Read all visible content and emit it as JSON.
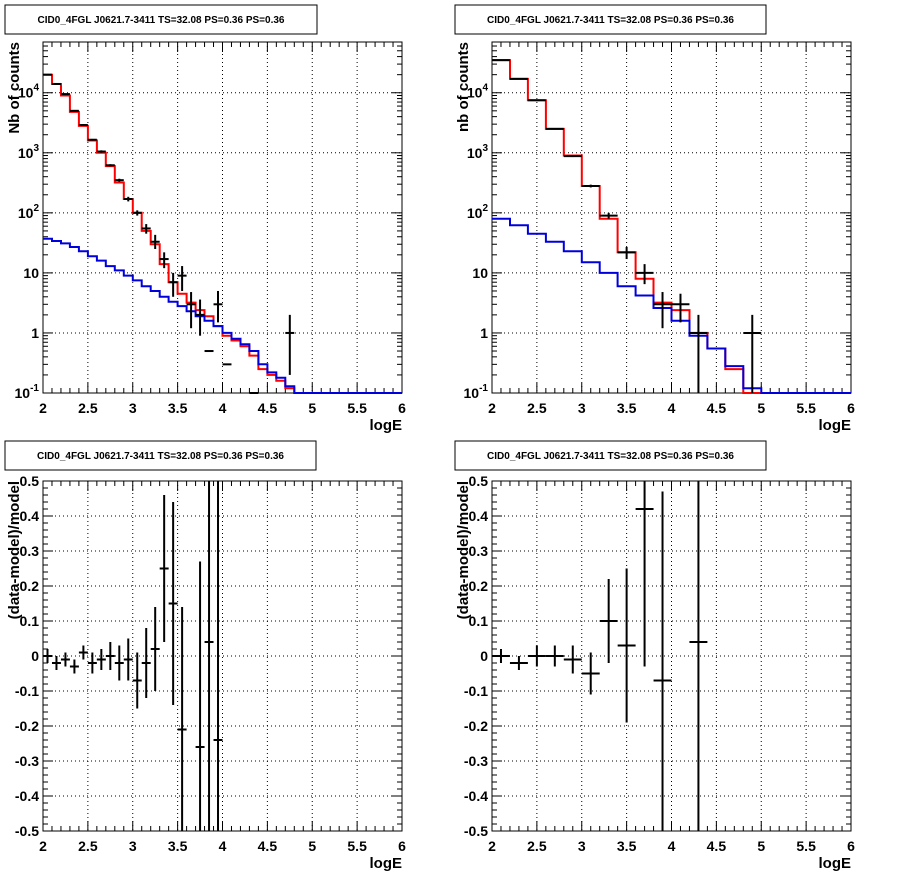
{
  "chart_data": [
    {
      "type": "line",
      "title": "CID0_4FGL J0621.7-3411 TS=32.08 PS=0.36 PS=0.36",
      "xlabel": "logE",
      "ylabel": "Nb of counts",
      "xscale": "linear",
      "yscale": "log",
      "xlim": [
        2,
        6
      ],
      "ylim": [
        0.1,
        70000
      ],
      "grid": true,
      "x_ticks": [
        "2",
        "2.5",
        "3",
        "3.5",
        "4",
        "4.5",
        "5",
        "5.5",
        "6"
      ],
      "y_ticks": [
        "10^-1",
        "1",
        "10",
        "10^2",
        "10^3",
        "10^4"
      ],
      "series": [
        {
          "color": "#ff0000",
          "style": "step",
          "bin_edges": [
            2.0,
            2.1,
            2.2,
            2.3,
            2.4,
            2.5,
            2.6,
            2.7,
            2.8,
            2.9,
            3.0,
            3.1,
            3.2,
            3.3,
            3.4,
            3.5,
            3.6,
            3.7,
            3.8,
            3.9,
            4.0,
            4.1,
            4.2,
            4.3,
            4.4,
            4.5,
            4.6,
            4.7,
            4.8,
            4.9,
            5.0,
            5.1,
            5.2,
            5.3,
            5.4,
            5.5,
            5.6,
            5.7,
            5.8,
            5.9,
            6.0
          ],
          "values": [
            20000,
            14000,
            9000,
            4800,
            2800,
            1600,
            1000,
            600,
            320,
            170,
            100,
            50,
            30,
            14,
            7,
            4.5,
            3.2,
            2.4,
            1.9,
            1.3,
            0.9,
            0.75,
            0.6,
            0.42,
            0.25,
            0.2,
            0.16,
            0.12,
            0.1,
            0.1,
            0.1,
            0.1,
            0.1,
            0.1,
            0.1,
            0.1,
            0.1,
            0.1,
            0.1,
            0.1
          ]
        },
        {
          "color": "#0000dd",
          "style": "step",
          "bin_edges": [
            2.0,
            2.1,
            2.2,
            2.3,
            2.4,
            2.5,
            2.6,
            2.7,
            2.8,
            2.9,
            3.0,
            3.1,
            3.2,
            3.3,
            3.4,
            3.5,
            3.6,
            3.7,
            3.8,
            3.9,
            4.0,
            4.1,
            4.2,
            4.3,
            4.4,
            4.5,
            4.6,
            4.7,
            4.8,
            4.9,
            5.0,
            5.1,
            5.2,
            5.3,
            5.4,
            5.5,
            5.6,
            5.7,
            5.8,
            5.9,
            6.0
          ],
          "values": [
            37,
            34,
            31,
            27,
            23,
            19,
            16,
            13,
            11,
            9,
            7.5,
            6,
            5,
            4,
            3.3,
            2.8,
            2.3,
            1.9,
            1.6,
            1.3,
            1.0,
            0.8,
            0.65,
            0.5,
            0.3,
            0.22,
            0.18,
            0.13,
            0.1,
            0.1,
            0.1,
            0.1,
            0.1,
            0.1,
            0.1,
            0.1,
            0.1,
            0.1,
            0.1,
            0.1
          ]
        }
      ],
      "data_points": {
        "color": "#000000",
        "x": [
          2.05,
          2.15,
          2.25,
          2.35,
          2.45,
          2.55,
          2.65,
          2.75,
          2.85,
          2.95,
          3.05,
          3.15,
          3.25,
          3.35,
          3.45,
          3.55,
          3.65,
          3.75,
          3.85,
          3.95,
          4.05,
          4.15,
          4.25,
          4.35,
          4.45,
          4.55,
          4.65,
          4.75,
          4.85
        ],
        "y": [
          20000,
          14000,
          9500,
          5000,
          2900,
          1650,
          1050,
          620,
          350,
          170,
          100,
          55,
          33,
          17,
          7,
          9,
          3,
          2,
          0.5,
          3,
          0.3,
          0.5,
          1,
          0.1,
          0.1,
          0.1,
          0.1,
          1,
          0.1
        ],
        "y_low": [
          19500,
          13700,
          9300,
          4850,
          2800,
          1600,
          1000,
          595,
          330,
          155,
          90,
          45,
          25,
          12,
          4,
          5,
          1.2,
          0.9,
          0.1,
          1.5,
          0.1,
          0.1,
          0.2,
          0.1,
          0.1,
          0.1,
          0.1,
          0.2,
          0.1
        ],
        "y_high": [
          20500,
          14300,
          9700,
          5150,
          3000,
          1700,
          1100,
          645,
          370,
          185,
          110,
          65,
          43,
          22,
          10,
          13,
          4.8,
          3.6,
          0.1,
          5,
          0.1,
          0.1,
          2,
          0.1,
          0.1,
          0.1,
          0.1,
          2,
          0.1
        ],
        "visible": [
          true,
          true,
          true,
          true,
          true,
          true,
          true,
          true,
          true,
          true,
          true,
          true,
          true,
          true,
          true,
          true,
          true,
          true,
          true,
          true,
          true,
          false,
          false,
          true,
          false,
          false,
          false,
          true,
          false
        ]
      }
    },
    {
      "type": "line",
      "title": "CID0_4FGL J0621.7-3411 TS=32.08 PS=0.36 PS=0.36",
      "xlabel": "logE",
      "ylabel": "nb of counts",
      "xscale": "linear",
      "yscale": "log",
      "xlim": [
        2,
        6
      ],
      "ylim": [
        0.1,
        70000
      ],
      "grid": true,
      "x_ticks": [
        "2",
        "2.5",
        "3",
        "3.5",
        "4",
        "4.5",
        "5",
        "5.5",
        "6"
      ],
      "y_ticks": [
        "10^-1",
        "1",
        "10",
        "10^2",
        "10^3",
        "10^4"
      ],
      "series": [
        {
          "color": "#ff0000",
          "style": "step",
          "bin_edges": [
            2.0,
            2.2,
            2.4,
            2.6,
            2.8,
            3.0,
            3.2,
            3.4,
            3.6,
            3.8,
            4.0,
            4.2,
            4.4,
            4.6,
            4.8,
            5.0,
            5.2,
            5.4,
            5.6,
            5.8,
            6.0
          ],
          "values": [
            35000,
            17000,
            7500,
            2500,
            900,
            280,
            80,
            22,
            8,
            3.2,
            2.4,
            1.0,
            0.55,
            0.25,
            0.1,
            0.1,
            0.1,
            0.1,
            0.1,
            0.1
          ]
        },
        {
          "color": "#0000dd",
          "style": "step",
          "bin_edges": [
            2.0,
            2.2,
            2.4,
            2.6,
            2.8,
            3.0,
            3.2,
            3.4,
            3.6,
            3.8,
            4.0,
            4.2,
            4.4,
            4.6,
            4.8,
            5.0,
            5.2,
            5.4,
            5.6,
            5.8,
            6.0
          ],
          "values": [
            80,
            62,
            45,
            33,
            23,
            15,
            10,
            6,
            4.2,
            2.6,
            1.6,
            0.9,
            0.55,
            0.28,
            0.12,
            0.1,
            0.1,
            0.1,
            0.1,
            0.1
          ]
        }
      ],
      "data_points": {
        "color": "#000000",
        "x": [
          2.1,
          2.3,
          2.5,
          2.7,
          2.9,
          3.1,
          3.3,
          3.5,
          3.7,
          3.9,
          4.1,
          4.3,
          4.5,
          4.7,
          4.9
        ],
        "y": [
          35000,
          17000,
          7500,
          2500,
          880,
          280,
          90,
          22,
          10,
          3,
          3,
          1,
          0.1,
          0.1,
          1
        ],
        "y_low": [
          34500,
          16800,
          7400,
          2450,
          850,
          265,
          80,
          17,
          6.5,
          1.2,
          1.5,
          0.1,
          0.1,
          0.1,
          0.1
        ],
        "y_high": [
          35500,
          17200,
          7600,
          2550,
          910,
          295,
          100,
          27,
          14,
          4.8,
          4.5,
          2,
          0.1,
          0.1,
          2
        ],
        "visible": [
          true,
          true,
          true,
          true,
          true,
          true,
          true,
          true,
          true,
          true,
          true,
          true,
          false,
          false,
          true
        ]
      }
    },
    {
      "type": "scatter",
      "title": "CID0_4FGL J0621.7-3411 TS=32.08 PS=0.36 PS=0.36",
      "xlabel": "logE",
      "ylabel": "(data-model)/model",
      "xlim": [
        2,
        6
      ],
      "ylim": [
        -0.5,
        0.5
      ],
      "grid": true,
      "x_ticks": [
        "2",
        "2.5",
        "3",
        "3.5",
        "4",
        "4.5",
        "5",
        "5.5",
        "6"
      ],
      "y_ticks": [
        "-0.5",
        "-0.4",
        "-0.3",
        "-0.2",
        "-0.1",
        "0",
        "0.1",
        "0.2",
        "0.3",
        "0.4",
        "0.5"
      ],
      "points": {
        "color": "#000000",
        "x": [
          2.05,
          2.15,
          2.25,
          2.35,
          2.45,
          2.55,
          2.65,
          2.75,
          2.85,
          2.95,
          3.05,
          3.15,
          3.25,
          3.35,
          3.45,
          3.55,
          3.75,
          3.85,
          3.95
        ],
        "y": [
          0.0,
          -0.02,
          -0.01,
          -0.03,
          0.01,
          -0.02,
          -0.01,
          0.0,
          -0.02,
          -0.01,
          -0.07,
          -0.02,
          0.02,
          0.25,
          0.15,
          -0.21,
          -0.26,
          0.04,
          -0.24
        ],
        "y_err": [
          0.02,
          0.02,
          0.02,
          0.02,
          0.02,
          0.03,
          0.03,
          0.04,
          0.05,
          0.06,
          0.08,
          0.1,
          0.12,
          0.21,
          0.29,
          0.35,
          0.53,
          0.6,
          0.8
        ],
        "x_err": 0.05
      }
    },
    {
      "type": "scatter",
      "title": "CID0_4FGL J0621.7-3411 TS=32.08 PS=0.36 PS=0.36",
      "xlabel": "logE",
      "ylabel": "(data-model)/model",
      "xlim": [
        2,
        6
      ],
      "ylim": [
        -0.5,
        0.5
      ],
      "grid": true,
      "x_ticks": [
        "2",
        "2.5",
        "3",
        "3.5",
        "4",
        "4.5",
        "5",
        "5.5",
        "6"
      ],
      "y_ticks": [
        "-0.5",
        "-0.4",
        "-0.3",
        "-0.2",
        "-0.1",
        "0",
        "0.1",
        "0.2",
        "0.3",
        "0.4",
        "0.5"
      ],
      "points": {
        "color": "#000000",
        "x": [
          2.1,
          2.3,
          2.5,
          2.7,
          2.9,
          3.1,
          3.3,
          3.5,
          3.7,
          3.9,
          4.3
        ],
        "y": [
          0.0,
          -0.02,
          0.0,
          0.0,
          -0.01,
          -0.05,
          0.1,
          0.03,
          0.42,
          -0.07,
          0.04
        ],
        "y_err": [
          0.02,
          0.02,
          0.03,
          0.03,
          0.04,
          0.06,
          0.12,
          0.22,
          0.45,
          0.54,
          0.8
        ],
        "x_err": 0.1
      }
    }
  ]
}
